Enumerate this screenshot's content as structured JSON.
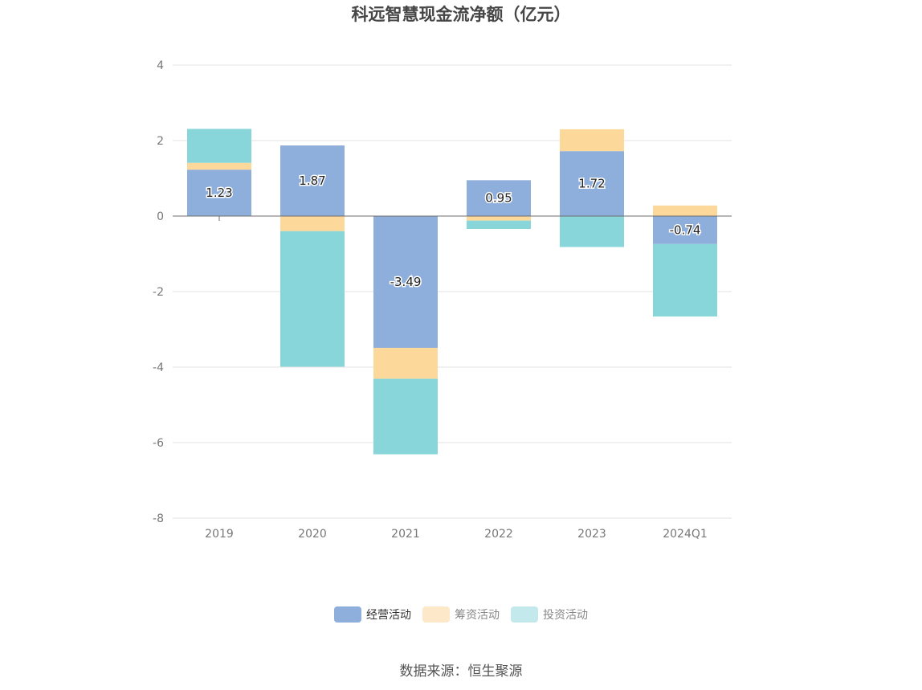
{
  "title": "科远智慧现金流净额（亿元）",
  "source": "数据来源：恒生聚源",
  "chart_data": {
    "type": "bar",
    "stacked": true,
    "categories": [
      "2019",
      "2020",
      "2021",
      "2022",
      "2023",
      "2024Q1"
    ],
    "ylim": [
      -8,
      4
    ],
    "yticks": [
      4,
      2,
      0,
      -2,
      -4,
      -6,
      -8
    ],
    "grid": true,
    "legend_position": "bottom",
    "series": [
      {
        "name": "经营活动",
        "color": "#8eaedb",
        "values": [
          1.23,
          1.87,
          -3.49,
          0.95,
          1.72,
          -0.74
        ],
        "show_labels": true
      },
      {
        "name": "筹资活动",
        "color": "#fcd89a",
        "values": [
          0.18,
          -0.4,
          -0.82,
          -0.12,
          0.58,
          0.28
        ],
        "show_labels": false
      },
      {
        "name": "投资活动",
        "color": "#88d6da",
        "values": [
          0.9,
          -3.59,
          -2.0,
          -0.22,
          -0.82,
          -1.92
        ],
        "show_labels": false
      }
    ]
  },
  "legend": [
    {
      "label": "经营活动",
      "color": "#8eaedb",
      "active": true
    },
    {
      "label": "筹资活动",
      "color": "#fde8c9",
      "active": false
    },
    {
      "label": "投资活动",
      "color": "#c3e9ec",
      "active": false
    }
  ]
}
